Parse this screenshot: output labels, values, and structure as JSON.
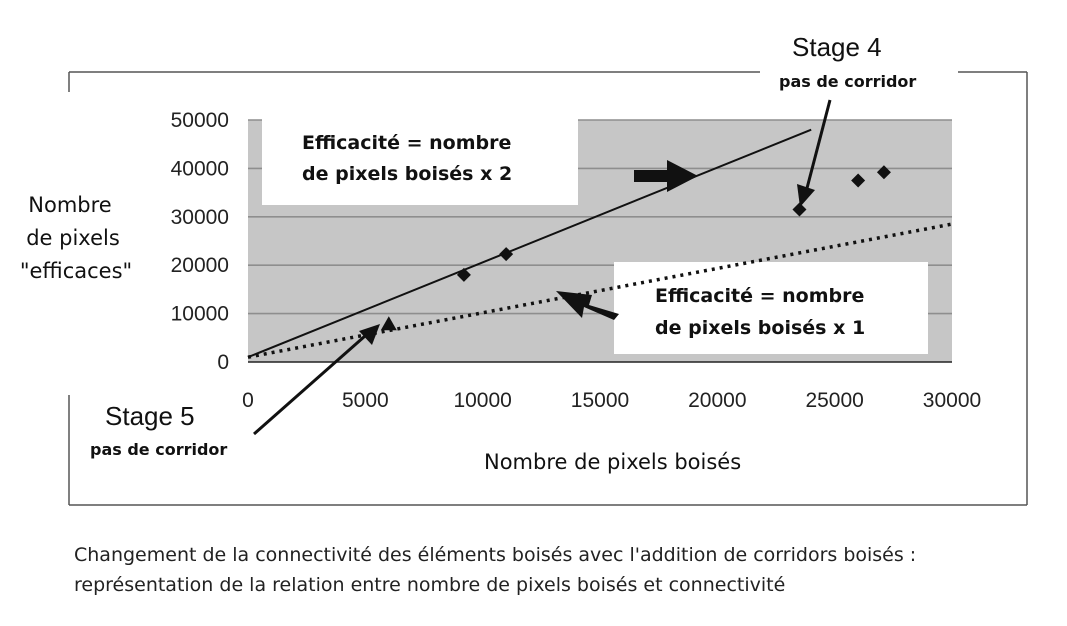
{
  "chart_data": {
    "type": "scatter",
    "title": "",
    "xlabel": "Nombre de pixels boisés",
    "ylabel": [
      "Nombre",
      "de pixels",
      "\"efficaces\""
    ],
    "xlim": [
      0,
      30000
    ],
    "ylim": [
      0,
      50000
    ],
    "xticks": [
      "0",
      "5000",
      "10000",
      "15000",
      "20000",
      "25000",
      "30000"
    ],
    "yticks": [
      "0",
      "10000",
      "20000",
      "30000",
      "40000",
      "50000"
    ],
    "grid": true,
    "points": [
      {
        "x": 6000,
        "y": 7800,
        "marker": "triangle"
      },
      {
        "x": 9200,
        "y": 18000,
        "marker": "diamond"
      },
      {
        "x": 11000,
        "y": 22300,
        "marker": "diamond"
      },
      {
        "x": 23500,
        "y": 31500,
        "marker": "diamond"
      },
      {
        "x": 26000,
        "y": 37500,
        "marker": "diamond"
      },
      {
        "x": 27100,
        "y": 39200,
        "marker": "diamond"
      }
    ],
    "lines": [
      {
        "style": "solid",
        "x": [
          0,
          24000
        ],
        "y": [
          1000,
          48000
        ]
      },
      {
        "style": "dotted",
        "x": [
          0,
          30000
        ],
        "y": [
          1000,
          28500
        ]
      }
    ],
    "annotations": {
      "factor2": [
        "Efficacité = nombre",
        "de pixels boisés x 2"
      ],
      "factor1": [
        "Efficacité = nombre",
        "de pixels boisés x 1"
      ],
      "stage4": {
        "title": "Stage 4",
        "subtitle": "pas de corridor"
      },
      "stage5": {
        "title": "Stage 5",
        "subtitle": "pas de corridor"
      }
    },
    "colors": {
      "plot_bg": "#c6c6c6",
      "grid": "#8e8e8e",
      "line": "#111111"
    }
  },
  "caption": [
    "Changement de la connectivité des éléments boisés avec l'addition de corridors boisés :",
    "représentation de la relation entre nombre de pixels boisés et connectivité"
  ]
}
